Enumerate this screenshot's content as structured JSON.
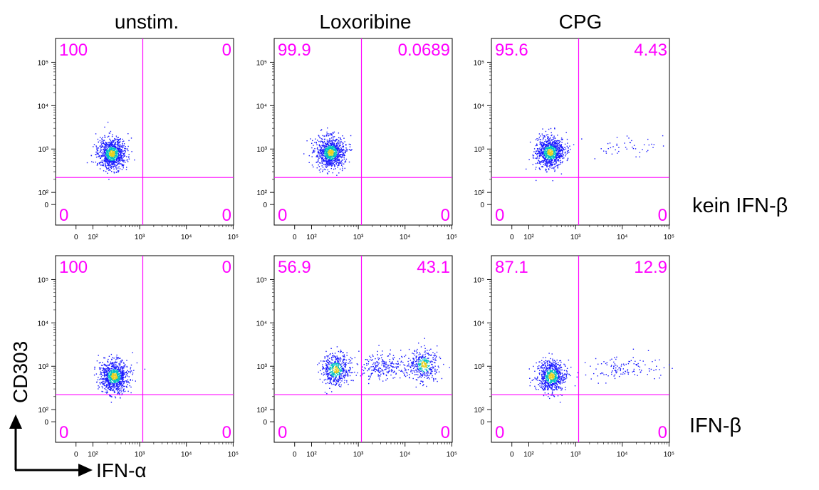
{
  "columns": [
    "unstim.",
    "Loxoribine",
    "CPG"
  ],
  "rows": [
    "kein IFN-β",
    "IFN-β"
  ],
  "axes": {
    "x_label": "IFN-α",
    "y_label": "CD303"
  },
  "colors": {
    "gate": "#ff00ff",
    "frame": "#000000",
    "dots_low": "#1a1aff",
    "dots_mid": "#00c0c0",
    "dots_high": "#e8d020"
  },
  "chart_data": [
    {
      "type": "scatter",
      "title": "unstim.",
      "row": "kein IFN-β",
      "x_scale": "biexponential",
      "y_scale": "biexponential",
      "x_ticks": [
        "0",
        "10²",
        "10³",
        "10⁴",
        "10⁵"
      ],
      "y_ticks": [
        "0",
        "10²",
        "10³",
        "10⁴",
        "10⁵"
      ],
      "quadrants": {
        "top_left": "100",
        "top_right": "0",
        "bottom_left": "0",
        "bottom_right": "0"
      },
      "clusters": [
        {
          "x": 250,
          "y": 800,
          "count": 900
        }
      ]
    },
    {
      "type": "scatter",
      "title": "Loxoribine",
      "row": "kein IFN-β",
      "x_scale": "biexponential",
      "y_scale": "biexponential",
      "x_ticks": [
        "0",
        "10²",
        "10³",
        "10⁴",
        "10⁵"
      ],
      "y_ticks": [
        "0",
        "10²",
        "10³",
        "10⁴",
        "10⁵"
      ],
      "quadrants": {
        "top_left": "99.9",
        "top_right": "0.0689",
        "bottom_left": "0",
        "bottom_right": "0"
      },
      "clusters": [
        {
          "x": 250,
          "y": 850,
          "count": 900
        }
      ]
    },
    {
      "type": "scatter",
      "title": "CPG",
      "row": "kein IFN-β",
      "x_scale": "biexponential",
      "y_scale": "biexponential",
      "x_ticks": [
        "0",
        "10²",
        "10³",
        "10⁴",
        "10⁵"
      ],
      "y_ticks": [
        "0",
        "10²",
        "10³",
        "10⁴",
        "10⁵"
      ],
      "quadrants": {
        "top_left": "95.6",
        "top_right": "4.43",
        "bottom_left": "0",
        "bottom_right": "0"
      },
      "clusters": [
        {
          "x": 280,
          "y": 850,
          "count": 900
        },
        {
          "x": 12000,
          "y": 1300,
          "count": 45
        }
      ]
    },
    {
      "type": "scatter",
      "title": "unstim.",
      "row": "IFN-β",
      "x_scale": "biexponential",
      "y_scale": "biexponential",
      "x_ticks": [
        "0",
        "10²",
        "10³",
        "10⁴",
        "10⁵"
      ],
      "y_ticks": [
        "0",
        "10²",
        "10³",
        "10⁴",
        "10⁵"
      ],
      "quadrants": {
        "top_left": "100",
        "top_right": "0",
        "bottom_left": "0",
        "bottom_right": "0"
      },
      "clusters": [
        {
          "x": 280,
          "y": 600,
          "count": 900
        }
      ]
    },
    {
      "type": "scatter",
      "title": "Loxoribine",
      "row": "IFN-β",
      "x_scale": "biexponential",
      "y_scale": "biexponential",
      "x_ticks": [
        "0",
        "10²",
        "10³",
        "10⁴",
        "10⁵"
      ],
      "y_ticks": [
        "0",
        "10²",
        "10³",
        "10⁴",
        "10⁵"
      ],
      "quadrants": {
        "top_left": "56.9",
        "top_right": "43.1",
        "bottom_left": "0",
        "bottom_right": "0"
      },
      "clusters": [
        {
          "x": 320,
          "y": 850,
          "count": 500
        },
        {
          "x": 3500,
          "y": 1000,
          "count": 250
        },
        {
          "x": 25000,
          "y": 1100,
          "count": 350
        }
      ]
    },
    {
      "type": "scatter",
      "title": "CPG",
      "row": "IFN-β",
      "x_scale": "biexponential",
      "y_scale": "biexponential",
      "x_ticks": [
        "0",
        "10²",
        "10³",
        "10⁴",
        "10⁵"
      ],
      "y_ticks": [
        "0",
        "10²",
        "10³",
        "10⁴",
        "10⁵"
      ],
      "quadrants": {
        "top_left": "87.1",
        "top_right": "12.9",
        "bottom_left": "0",
        "bottom_right": "0"
      },
      "clusters": [
        {
          "x": 300,
          "y": 600,
          "count": 750
        },
        {
          "x": 5000,
          "y": 900,
          "count": 60
        },
        {
          "x": 22000,
          "y": 1000,
          "count": 60
        }
      ]
    }
  ]
}
